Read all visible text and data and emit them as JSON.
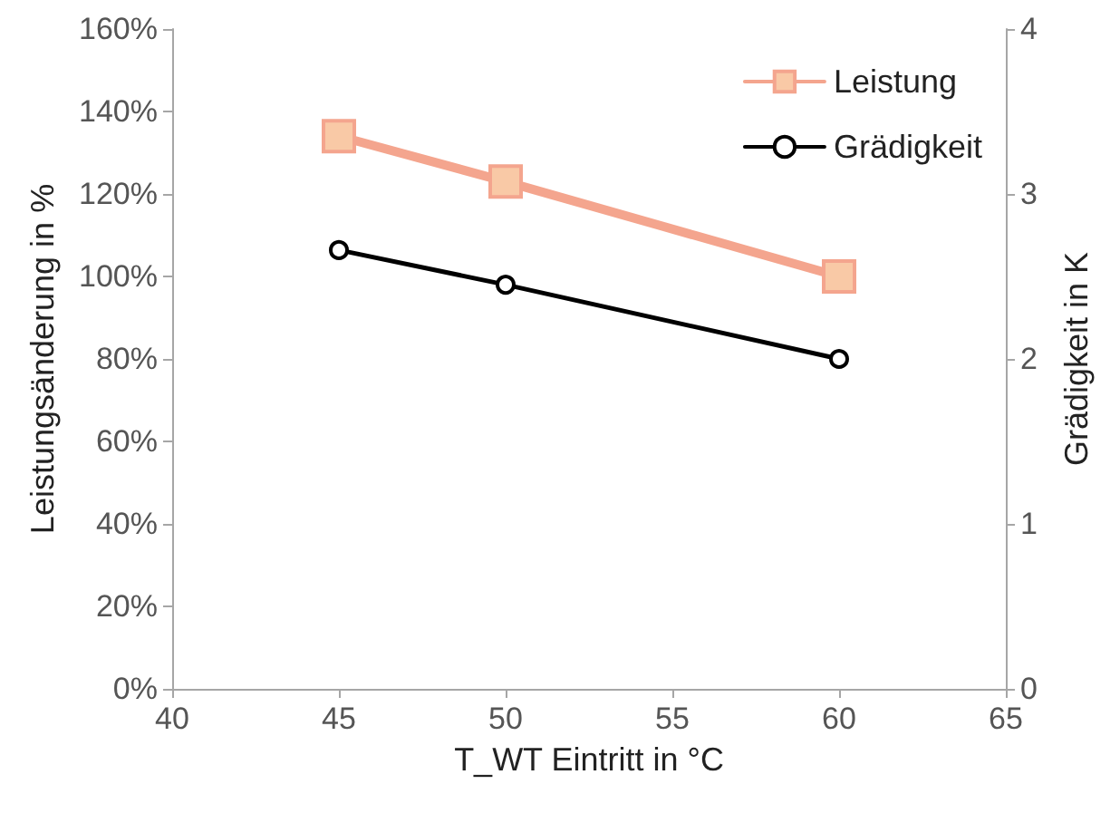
{
  "chart_data": {
    "type": "line",
    "xlabel": "T_WT Eintritt in °C",
    "ylabel": "Leistungsänderung in %",
    "y2label": "Grädigkeit in K",
    "x": [
      45,
      50,
      60
    ],
    "series": [
      {
        "name": "Leistung",
        "color": "#f4a58e",
        "values": [
          134,
          123,
          100
        ],
        "marker": "square"
      },
      {
        "name": "Grädigkeit",
        "color": "#000000",
        "values": [
          2.66,
          2.45,
          2.0
        ],
        "marker": "circle",
        "axis": "y2"
      }
    ],
    "xlim": [
      40,
      65
    ],
    "xticks": [
      40,
      45,
      50,
      55,
      60,
      65
    ],
    "ylim": [
      0,
      160
    ],
    "yticks": [
      {
        "value": 0,
        "label": "0%"
      },
      {
        "value": 20,
        "label": "20%"
      },
      {
        "value": 40,
        "label": "40%"
      },
      {
        "value": 60,
        "label": "60%"
      },
      {
        "value": 80,
        "label": "80%"
      },
      {
        "value": 100,
        "label": "100%"
      },
      {
        "value": 120,
        "label": "120%"
      },
      {
        "value": 140,
        "label": "140%"
      },
      {
        "value": 160,
        "label": "160%"
      }
    ],
    "y2lim": [
      0,
      4
    ],
    "y2ticks": [
      0,
      1,
      2,
      3,
      4
    ],
    "grid": false,
    "legend": "top right"
  }
}
